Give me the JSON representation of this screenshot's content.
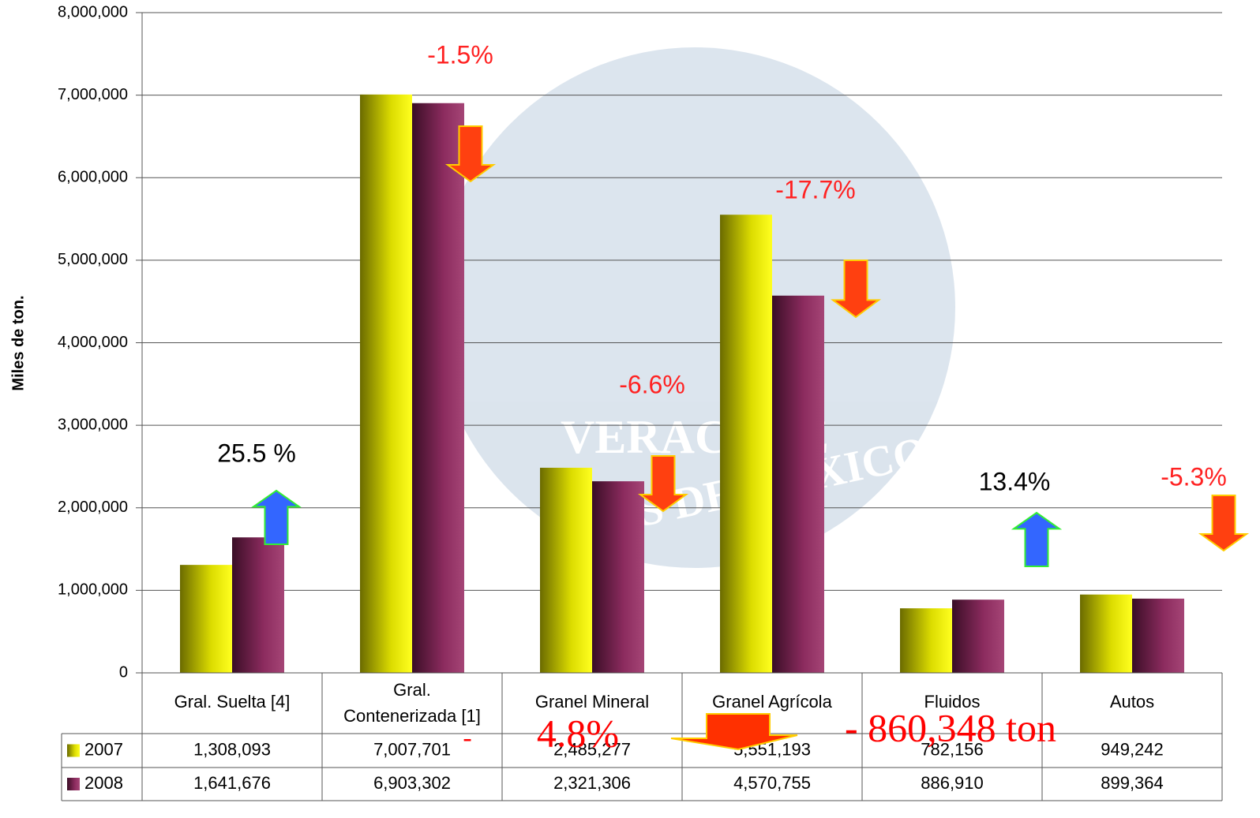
{
  "chart_data": {
    "type": "bar",
    "y_label": "Miles de ton.",
    "categories": [
      "Gral. Suelta [4]",
      "Gral. Contenerizada [1]",
      "Granel Mineral",
      "Granel Agrícola",
      "Fluidos",
      "Autos"
    ],
    "series": [
      {
        "name": "2007",
        "color": "#e6e600",
        "values": [
          1308093,
          7007701,
          2485277,
          5551193,
          782156,
          949242
        ],
        "value_labels": [
          "1,308,093",
          "7,007,701",
          "2,485,277",
          "5,551,193",
          "782,156",
          "949,242"
        ]
      },
      {
        "name": "2008",
        "color": "#8b2b5e",
        "values": [
          1641676,
          6903302,
          2321306,
          4570755,
          886910,
          899364
        ],
        "value_labels": [
          "1,641,676",
          "6,903,302",
          "2,321,306",
          "4,570,755",
          "886,910",
          "899,364"
        ]
      }
    ],
    "ylim": [
      0,
      8000000
    ],
    "yticks": [
      0,
      {
        "value": 1000000,
        "label": "1,000,000"
      },
      {
        "value": 2000000,
        "label": "2,000,000"
      },
      {
        "value": 3000000,
        "label": "3,000,000"
      },
      {
        "value": 4000000,
        "label": "4,000,000"
      },
      {
        "value": 5000000,
        "label": "5,000,000"
      },
      {
        "value": 6000000,
        "label": "6,000,000"
      },
      {
        "value": 7000000,
        "label": "7,000,000"
      },
      {
        "value": 8000000,
        "label": "8,000,000"
      }
    ],
    "grid": true,
    "annotations": [
      "25.5 %",
      "-1.5%",
      "-6.6%",
      "-17.7%",
      "13.4%",
      "-5.3%"
    ],
    "totals": [
      "-",
      "4.8%",
      "- 860,348 ton"
    ],
    "watermark": [
      "VERACRUZ",
      "PUERTOS DE MÉXICO"
    ]
  }
}
